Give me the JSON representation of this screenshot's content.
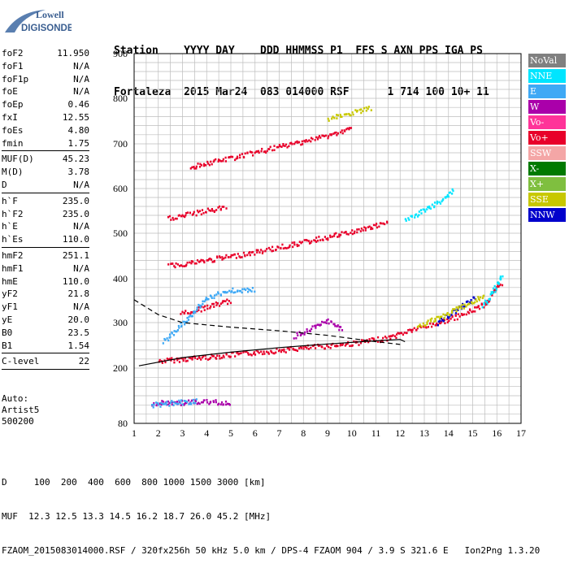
{
  "logo": {
    "line1": "Lowell",
    "line2": "DIGISONDE"
  },
  "header": {
    "line1": "Station    YYYY DAY    DDD HHMMSS P1  FFS S AXN PPS IGA PS",
    "line2": "Fortaleza  2015 Mar24  083 014000 RSF      1 714 100 10+ 11"
  },
  "params": [
    [
      {
        "k": "foF2",
        "v": "11.950"
      },
      {
        "k": "foF1",
        "v": "N/A"
      },
      {
        "k": "foF1p",
        "v": "N/A"
      },
      {
        "k": "foE",
        "v": "N/A"
      },
      {
        "k": "foEp",
        "v": "0.46"
      },
      {
        "k": "fxI",
        "v": "12.55"
      },
      {
        "k": "foEs",
        "v": "4.80"
      },
      {
        "k": "fmin",
        "v": "1.75"
      }
    ],
    [
      {
        "k": "MUF(D)",
        "v": "45.23"
      },
      {
        "k": "M(D)",
        "v": "3.78"
      },
      {
        "k": "D",
        "v": "N/A"
      }
    ],
    [
      {
        "k": "h`F",
        "v": "235.0"
      },
      {
        "k": "h`F2",
        "v": "235.0"
      },
      {
        "k": "h`E",
        "v": "N/A"
      },
      {
        "k": "h`Es",
        "v": "110.0"
      }
    ],
    [
      {
        "k": "hmF2",
        "v": "251.1"
      },
      {
        "k": "hmF1",
        "v": "N/A"
      },
      {
        "k": "hmE",
        "v": "110.0"
      },
      {
        "k": "yF2",
        "v": "21.8"
      },
      {
        "k": "yF1",
        "v": "N/A"
      },
      {
        "k": "yE",
        "v": "20.0"
      },
      {
        "k": "B0",
        "v": "23.5"
      },
      {
        "k": "B1",
        "v": "1.54"
      }
    ],
    [
      {
        "k": "C-level",
        "v": "22"
      }
    ]
  ],
  "auto": {
    "line1": "Auto:",
    "line2": "Artist5",
    "line3": "500200"
  },
  "legend": [
    {
      "label": "NoVal",
      "color": "#808080"
    },
    {
      "label": "NNE",
      "color": "#00e5ff"
    },
    {
      "label": "E",
      "color": "#3fa9f5"
    },
    {
      "label": "W",
      "color": "#aa00aa"
    },
    {
      "label": "Vo-",
      "color": "#ff3399"
    },
    {
      "label": "Vo+",
      "color": "#e8002a"
    },
    {
      "label": "SSW",
      "color": "#f4a6a6"
    },
    {
      "label": "X-",
      "color": "#007a00"
    },
    {
      "label": "X+",
      "color": "#7fbf3f"
    },
    {
      "label": "SSE",
      "color": "#c8c800"
    },
    {
      "label": "NNW",
      "color": "#0000cc"
    }
  ],
  "footer": {
    "line1": "D     100  200  400  600  800 1000 1500 3000 [km]",
    "line2": "MUF  12.3 12.5 13.3 14.5 16.2 18.7 26.0 45.2 [MHz]",
    "line3": "FZAOM_2015083014000.RSF / 320fx256h 50 kHz 5.0 km / DPS-4 FZAOM 904 / 3.9 S 321.6 E   Ion2Png 1.3.20"
  },
  "chart_data": {
    "type": "scatter",
    "x_ticks": [
      1,
      2,
      3,
      4,
      5,
      6,
      7,
      8,
      9,
      10,
      11,
      12,
      13,
      14,
      15,
      16,
      17
    ],
    "y_ticks": [
      80,
      200,
      300,
      400,
      500,
      600,
      700,
      800,
      900
    ],
    "x_range": [
      1,
      17
    ],
    "y_range": [
      80,
      900
    ],
    "grid": true,
    "legend_position": "right",
    "traces": [
      {
        "color_key": "Vo+",
        "points": [
          [
            2.0,
            217
          ],
          [
            4.0,
            226
          ],
          [
            6.0,
            236
          ],
          [
            8.0,
            246
          ],
          [
            10.0,
            256
          ],
          [
            11.5,
            268
          ],
          [
            12.4,
            285
          ],
          [
            13.5,
            300
          ],
          [
            14.5,
            318
          ],
          [
            15.5,
            345
          ],
          [
            16.2,
            395
          ]
        ]
      },
      {
        "color_key": "Vo+",
        "points": [
          [
            2.9,
            322
          ],
          [
            3.5,
            330
          ],
          [
            4.5,
            345
          ],
          [
            5.0,
            352
          ]
        ]
      },
      {
        "color_key": "Vo+",
        "points": [
          [
            2.4,
            430
          ],
          [
            4.0,
            442
          ],
          [
            6.0,
            460
          ],
          [
            8.0,
            482
          ],
          [
            10.0,
            505
          ],
          [
            11.5,
            525
          ]
        ]
      },
      {
        "color_key": "Vo+",
        "points": [
          [
            2.4,
            535
          ],
          [
            4.0,
            552
          ],
          [
            4.8,
            560
          ]
        ]
      },
      {
        "color_key": "Vo+",
        "points": [
          [
            3.3,
            650
          ],
          [
            5.0,
            670
          ],
          [
            7.0,
            695
          ],
          [
            9.0,
            720
          ],
          [
            10.0,
            735
          ]
        ]
      },
      {
        "color_key": "W",
        "points": [
          [
            7.6,
            272
          ],
          [
            8.4,
            290
          ],
          [
            9.0,
            305
          ],
          [
            9.6,
            285
          ]
        ]
      },
      {
        "color_key": "W",
        "points": [
          [
            1.7,
            125
          ],
          [
            3.0,
            127
          ],
          [
            4.0,
            128
          ],
          [
            5.0,
            127
          ]
        ]
      },
      {
        "color_key": "NNW",
        "points": [
          [
            13.5,
            300
          ],
          [
            14.0,
            320
          ],
          [
            14.7,
            345
          ],
          [
            15.1,
            360
          ]
        ]
      },
      {
        "color_key": "SSE",
        "points": [
          [
            12.7,
            295
          ],
          [
            13.5,
            310
          ],
          [
            14.8,
            345
          ],
          [
            15.5,
            365
          ]
        ]
      },
      {
        "color_key": "SSE",
        "points": [
          [
            9.0,
            755
          ],
          [
            10.0,
            770
          ],
          [
            10.8,
            780
          ]
        ]
      },
      {
        "color_key": "NNE",
        "points": [
          [
            12.2,
            530
          ],
          [
            13.2,
            560
          ],
          [
            13.8,
            580
          ],
          [
            14.2,
            600
          ]
        ]
      },
      {
        "color_key": "NNE",
        "points": [
          [
            15.4,
            340
          ],
          [
            15.8,
            370
          ],
          [
            16.2,
            410
          ]
        ]
      },
      {
        "color_key": "E",
        "points": [
          [
            2.2,
            260
          ],
          [
            3.0,
            300
          ],
          [
            4.0,
            360
          ],
          [
            5.0,
            375
          ],
          [
            6.0,
            378
          ]
        ]
      },
      {
        "color_key": "E",
        "points": [
          [
            1.7,
            122
          ],
          [
            3.0,
            128
          ],
          [
            3.6,
            130
          ]
        ]
      }
    ],
    "reference_curves": [
      {
        "style": "solid",
        "points": [
          [
            1.2,
            205
          ],
          [
            3.0,
            223
          ],
          [
            5.0,
            235
          ],
          [
            7.0,
            245
          ],
          [
            9.0,
            253
          ],
          [
            11.0,
            260
          ],
          [
            12.0,
            263
          ],
          [
            12.2,
            258
          ]
        ]
      },
      {
        "style": "dashed",
        "points": [
          [
            1.0,
            352
          ],
          [
            2.0,
            318
          ],
          [
            3.0,
            300
          ],
          [
            5.0,
            290
          ],
          [
            7.0,
            282
          ],
          [
            9.0,
            272
          ],
          [
            11.0,
            258
          ],
          [
            12.0,
            252
          ]
        ]
      }
    ]
  }
}
